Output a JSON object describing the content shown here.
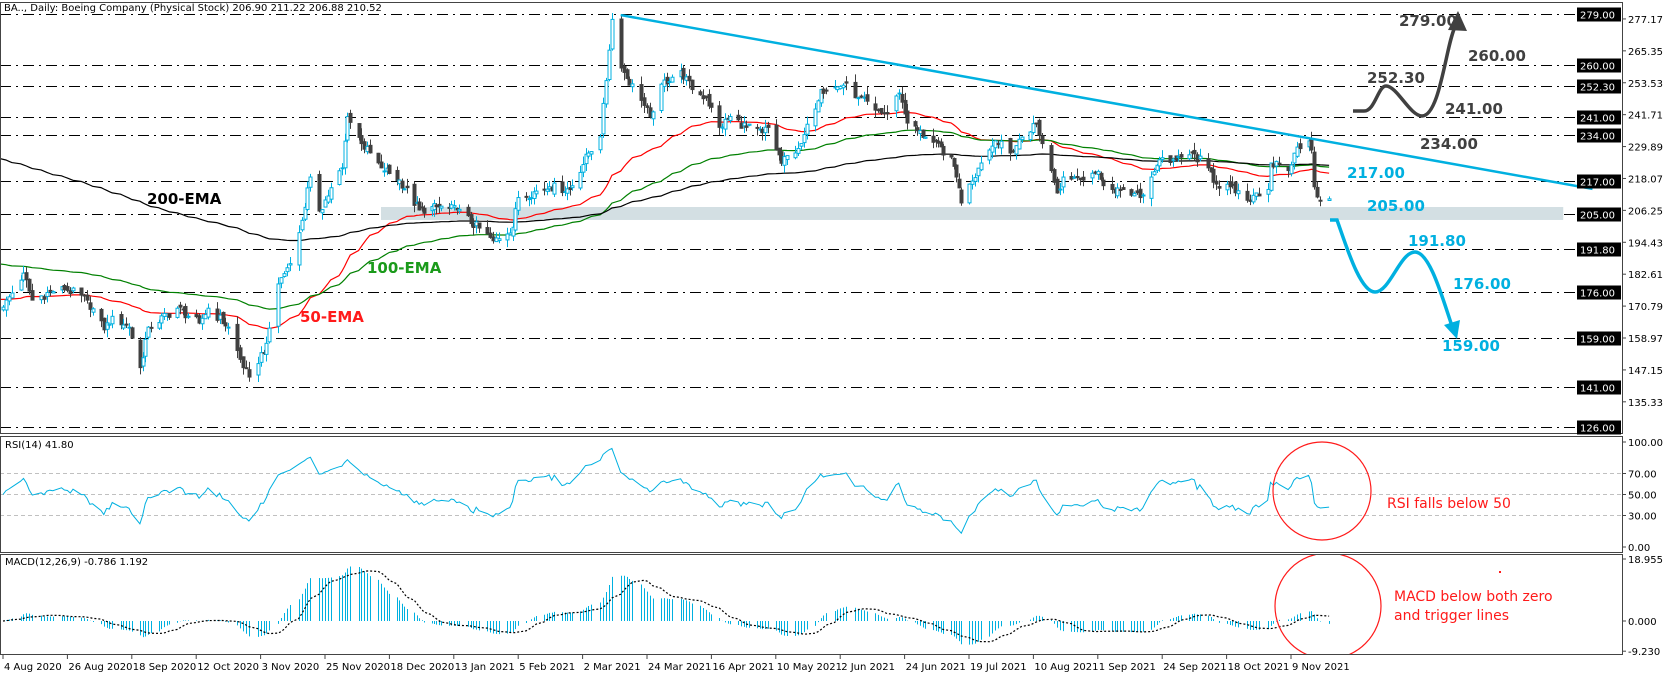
{
  "header": {
    "title": "BA.., Daily:  Boeing Company (Physical Stock)  206.90 211.22 206.88 210.52"
  },
  "colors": {
    "bull": "#00b0e0",
    "bear": "#404040",
    "ema50": "#ff0000",
    "ema100": "#008000",
    "ema200": "#000000",
    "trendline": "#00b0e0",
    "support_zone": "#d3dfe3",
    "annotation_red": "#ff1a1a"
  },
  "chart_data": [
    {
      "type": "candlestick",
      "panel": "price",
      "x_ticks": [
        "4 Aug 2020",
        "26 Aug 2020",
        "18 Sep 2020",
        "12 Oct 2020",
        "3 Nov 2020",
        "25 Nov 2020",
        "18 Dec 2020",
        "13 Jan 2021",
        "5 Feb 2021",
        "2 Mar 2021",
        "24 Mar 2021",
        "16 Apr 2021",
        "10 May 2021",
        "2 Jun 2021",
        "24 Jun 2021",
        "19 Jul 2021",
        "10 Aug 2021",
        "1 Sep 2021",
        "24 Sep 2021",
        "18 Oct 2021",
        "9 Nov 2021"
      ],
      "y_ticks": [
        277.17,
        265.35,
        253.53,
        241.71,
        229.89,
        218.07,
        206.25,
        194.43,
        182.61,
        170.79,
        158.97,
        147.15,
        135.33
      ],
      "ylim": [
        126,
        279
      ],
      "close_keypoints": [
        [
          "2020-08-04",
          170.4
        ],
        [
          "2020-08-11",
          183
        ],
        [
          "2020-08-14",
          173
        ],
        [
          "2020-08-24",
          178
        ],
        [
          "2020-09-02",
          173
        ],
        [
          "2020-09-08",
          162
        ],
        [
          "2020-09-11",
          167
        ],
        [
          "2020-09-17",
          163
        ],
        [
          "2020-09-21",
          148
        ],
        [
          "2020-09-24",
          163
        ],
        [
          "2020-10-05",
          170
        ],
        [
          "2020-10-13",
          164.5
        ],
        [
          "2020-10-16",
          170
        ],
        [
          "2020-10-23",
          163
        ],
        [
          "2020-10-28",
          148
        ],
        [
          "2020-10-30",
          144.5
        ],
        [
          "2020-11-05",
          157
        ],
        [
          "2020-11-09",
          179
        ],
        [
          "2020-11-12",
          185
        ],
        [
          "2020-11-16",
          198
        ],
        [
          "2020-11-20",
          218.6
        ],
        [
          "2020-11-23",
          206
        ],
        [
          "2020-12-01",
          222
        ],
        [
          "2020-12-03",
          241
        ],
        [
          "2020-12-08",
          231
        ],
        [
          "2020-12-15",
          222
        ],
        [
          "2020-12-22",
          217.5
        ],
        [
          "2020-12-30",
          206.4
        ],
        [
          "2021-01-07",
          207.5
        ],
        [
          "2021-01-14",
          206.4
        ],
        [
          "2021-01-27",
          195
        ],
        [
          "2021-02-03",
          200
        ],
        [
          "2021-02-05",
          211
        ],
        [
          "2021-02-17",
          215
        ],
        [
          "2021-02-25",
          214
        ],
        [
          "2021-03-04",
          227.5
        ],
        [
          "2021-03-08",
          233.5
        ],
        [
          "2021-03-11",
          265.6
        ],
        [
          "2021-03-12",
          277
        ],
        [
          "2021-03-15",
          259
        ],
        [
          "2021-03-22",
          247
        ],
        [
          "2021-03-25",
          241
        ],
        [
          "2021-03-29",
          253
        ],
        [
          "2021-04-05",
          258
        ],
        [
          "2021-04-09",
          251
        ],
        [
          "2021-04-14",
          248
        ],
        [
          "2021-04-19",
          237
        ],
        [
          "2021-04-23",
          241
        ],
        [
          "2021-04-29",
          237
        ],
        [
          "2021-05-05",
          235
        ],
        [
          "2021-05-07",
          237
        ],
        [
          "2021-05-12",
          223.7
        ],
        [
          "2021-05-19",
          231
        ],
        [
          "2021-05-26",
          251
        ],
        [
          "2021-06-01",
          252
        ],
        [
          "2021-06-04",
          253.4
        ],
        [
          "2021-06-08",
          248
        ],
        [
          "2021-06-14",
          243.4
        ],
        [
          "2021-06-18",
          242
        ],
        [
          "2021-06-22",
          249.7
        ],
        [
          "2021-06-25",
          238.6
        ],
        [
          "2021-07-02",
          233.4
        ],
        [
          "2021-07-12",
          226
        ],
        [
          "2021-07-14",
          218.6
        ],
        [
          "2021-07-16",
          209
        ],
        [
          "2021-07-19",
          216
        ],
        [
          "2021-07-23",
          223.8
        ],
        [
          "2021-07-28",
          232
        ],
        [
          "2021-08-02",
          227.5
        ],
        [
          "2021-08-06",
          233.4
        ],
        [
          "2021-08-11",
          238.6
        ],
        [
          "2021-08-13",
          231
        ],
        [
          "2021-08-16",
          221
        ],
        [
          "2021-08-18",
          212.7
        ],
        [
          "2021-08-20",
          218.6
        ],
        [
          "2021-08-25",
          218.6
        ],
        [
          "2021-08-31",
          220
        ],
        [
          "2021-09-07",
          212.7
        ],
        [
          "2021-09-10",
          214
        ],
        [
          "2021-09-16",
          211
        ],
        [
          "2021-09-20",
          218.6
        ],
        [
          "2021-09-23",
          225
        ],
        [
          "2021-09-29",
          225
        ],
        [
          "2021-10-05",
          227.5
        ],
        [
          "2021-10-11",
          222
        ],
        [
          "2021-10-14",
          216
        ],
        [
          "2021-10-19",
          215
        ],
        [
          "2021-10-25",
          210
        ],
        [
          "2021-10-28",
          212.7
        ],
        [
          "2021-11-01",
          214
        ],
        [
          "2021-11-02",
          223.8
        ],
        [
          "2021-11-08",
          221
        ],
        [
          "2021-11-11",
          229.7
        ],
        [
          "2021-11-15",
          232
        ],
        [
          "2021-11-16",
          228.6
        ],
        [
          "2021-11-17",
          215
        ],
        [
          "2021-11-19",
          210
        ],
        [
          "2021-11-22",
          210.52
        ]
      ],
      "ema_series": [
        {
          "name": "50-EMA",
          "period": 50,
          "start": 173.4
        },
        {
          "name": "100-EMA",
          "period": 100,
          "start": 186.7
        },
        {
          "name": "200-EMA",
          "period": 200,
          "start": 226
        }
      ],
      "levels": [
        279.0,
        260.0,
        252.3,
        241.0,
        234.0,
        217.0,
        205.0,
        191.8,
        176.0,
        159.0,
        141.0,
        126.0
      ],
      "level_labels": [
        "279.00",
        "260.00",
        "252.30",
        "241.00",
        "234.00",
        "217.00",
        "205.00",
        "191.80",
        "176.00",
        "159.00",
        "141.00",
        "126.00"
      ],
      "support_zone": [
        202.7,
        207.5
      ],
      "support_zone_end": "2022-02-10",
      "trendline": [
        [
          "2021-03-15",
          278.6
        ],
        [
          "2022-02-20",
          214.2
        ]
      ],
      "annotations": {
        "bull_targets": [
          "279.00",
          "260.00",
          "252.30",
          "241.00",
          "234.00"
        ],
        "bear_targets": [
          "217.00",
          "205.00",
          "191.80",
          "176.00",
          "159.00"
        ]
      }
    },
    {
      "type": "line",
      "panel": "rsi",
      "title": "RSI(14) 41.80",
      "period": 14,
      "ylim": [
        0,
        100
      ],
      "y_ticks": [
        "100.00",
        "70.00",
        "50.00",
        "30.00",
        "0.00"
      ],
      "levels": [
        70,
        50,
        30
      ]
    },
    {
      "type": "bar",
      "panel": "macd",
      "title": "MACD(12,26,9) -0.786 1.192",
      "params": [
        12,
        26,
        9
      ],
      "ylim": [
        -9.23,
        18.955
      ],
      "y_ticks": [
        "18.955",
        "0.000",
        "-9.230"
      ]
    }
  ],
  "notes": {
    "rsi": "RSI falls below 50",
    "macd_line1": "MACD below both zero",
    "macd_line2": "and trigger lines"
  }
}
